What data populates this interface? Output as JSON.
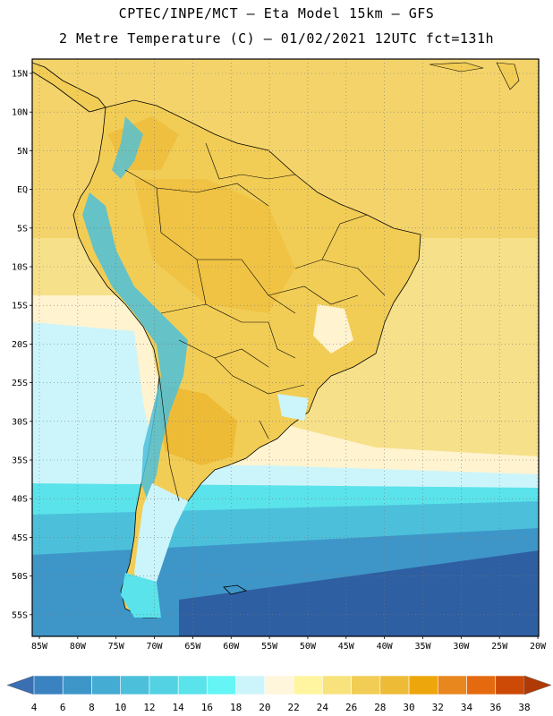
{
  "title_line1": "CPTEC/INPE/MCT –  Eta Model 15km – GFS",
  "title_line2": "2 Metre Temperature (C) – 01/02/2021 12UTC fct=131h",
  "lat_labels": [
    "15N",
    "10N",
    "5N",
    "EQ",
    "5S",
    "10S",
    "15S",
    "20S",
    "25S",
    "30S",
    "35S",
    "40S",
    "45S",
    "50S",
    "55S"
  ],
  "lon_labels": [
    "85W",
    "80W",
    "75W",
    "70W",
    "65W",
    "60W",
    "55W",
    "50W",
    "45W",
    "40W",
    "35W",
    "30W",
    "25W",
    "20W"
  ],
  "colorbar": {
    "labels": [
      "4",
      "6",
      "8",
      "10",
      "12",
      "14",
      "16",
      "18",
      "20",
      "22",
      "24",
      "26",
      "28",
      "30",
      "32",
      "34",
      "36",
      "38"
    ],
    "colors": [
      "#3a6fb3",
      "#3a82c0",
      "#3e96c8",
      "#44abd3",
      "#4cc0db",
      "#52d2e2",
      "#5ae3ea",
      "#66f5f5",
      "#ccf5fb",
      "#fff6dc",
      "#fff5a0",
      "#f7e27c",
      "#f2cd55",
      "#eebb37",
      "#eda60c",
      "#e8871e",
      "#e56a0f",
      "#cc4a06",
      "#b03a05"
    ]
  },
  "map_layers": {
    "ocean_south_deep": "#2e5fa3",
    "ocean_south_mid": "#3d83c0",
    "ocean_south_light": "#4fc4dd",
    "ocean_cool_band": "#8fe3f0",
    "ocean_pale": "#fff3d0",
    "ocean_tropical": "#f7e08a",
    "land_base": "#f2cd55",
    "land_warm": "#eebb37",
    "andes_cold": "#4cc0db",
    "border_color": "#000000"
  }
}
